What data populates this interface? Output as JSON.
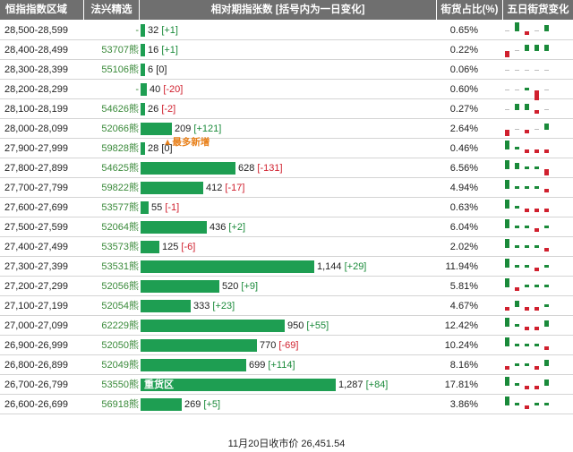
{
  "header": {
    "col_range": "恒指指数区域",
    "col_code": "法兴精选",
    "col_volume": "相对期指张数 [括号内为一日变化]",
    "col_ratio": "街货占比(%)",
    "col_trend": "五日街货变化"
  },
  "colors": {
    "bar": "#1e9e52",
    "up": "#1a8a3a",
    "down": "#d0202e",
    "header_bg": "#6f6f6f",
    "code_text": "#3a8a3a",
    "tag_text": "#e8801a"
  },
  "rows": [
    {
      "range": "28,500-28,599",
      "code": "-",
      "count": "32",
      "change": "[+1]",
      "dir": "up",
      "value": 32,
      "ratio": "0.65%",
      "trend": [
        0,
        3,
        -1,
        0,
        2
      ]
    },
    {
      "range": "28,400-28,499",
      "code": "53707熊",
      "count": "16",
      "change": "[+1]",
      "dir": "up",
      "value": 16,
      "ratio": "0.22%",
      "trend": [
        -2,
        0,
        2,
        2,
        2
      ]
    },
    {
      "range": "28,300-28,399",
      "code": "55106熊",
      "count": "6",
      "change": "[0]",
      "dir": "none",
      "value": 6,
      "ratio": "0.06%",
      "trend": [
        0,
        0,
        0,
        0,
        0
      ]
    },
    {
      "range": "28,200-28,299",
      "code": "-",
      "count": "40",
      "change": "[-20]",
      "dir": "down",
      "value": 40,
      "ratio": "0.60%",
      "trend": [
        0,
        0,
        1,
        -3,
        0
      ]
    },
    {
      "range": "28,100-28,199",
      "code": "54626熊",
      "count": "26",
      "change": "[-2]",
      "dir": "down",
      "value": 26,
      "ratio": "0.27%",
      "trend": [
        0,
        2,
        2,
        -1,
        0
      ]
    },
    {
      "range": "28,000-28,099",
      "code": "52066熊",
      "count": "209",
      "change": "[+121]",
      "dir": "up",
      "value": 209,
      "ratio": "2.64%",
      "trend": [
        -2,
        0,
        -1,
        0,
        2
      ]
    },
    {
      "range": "27,900-27,999",
      "code": "59828熊",
      "count": "28",
      "change": "[0]",
      "dir": "none",
      "value": 28,
      "ratio": "0.46%",
      "trend": [
        3,
        1,
        -1,
        -1,
        -1
      ]
    },
    {
      "range": "27,800-27,899",
      "code": "54625熊",
      "count": "628",
      "change": "[-131]",
      "dir": "down",
      "value": 628,
      "ratio": "6.56%",
      "trend": [
        3,
        2,
        1,
        1,
        -2
      ]
    },
    {
      "range": "27,700-27,799",
      "code": "59822熊",
      "count": "412",
      "change": "[-17]",
      "dir": "down",
      "value": 412,
      "ratio": "4.94%",
      "trend": [
        3,
        1,
        1,
        1,
        -1
      ]
    },
    {
      "range": "27,600-27,699",
      "code": "53577熊",
      "count": "55",
      "change": "[-1]",
      "dir": "down",
      "value": 55,
      "ratio": "0.63%",
      "trend": [
        3,
        1,
        -1,
        -1,
        -1
      ]
    },
    {
      "range": "27,500-27,599",
      "code": "52064熊",
      "count": "436",
      "change": "[+2]",
      "dir": "up",
      "value": 436,
      "ratio": "6.04%",
      "trend": [
        3,
        1,
        1,
        -1,
        1
      ]
    },
    {
      "range": "27,400-27,499",
      "code": "53573熊",
      "count": "125",
      "change": "[-6]",
      "dir": "down",
      "value": 125,
      "ratio": "2.02%",
      "trend": [
        3,
        1,
        1,
        1,
        -1
      ]
    },
    {
      "range": "27,300-27,399",
      "code": "53531熊",
      "count": "1,144",
      "change": "[+29]",
      "dir": "up",
      "value": 1144,
      "ratio": "11.94%",
      "trend": [
        3,
        1,
        1,
        -1,
        1
      ]
    },
    {
      "range": "27,200-27,299",
      "code": "52056熊",
      "count": "520",
      "change": "[+9]",
      "dir": "up",
      "value": 520,
      "ratio": "5.81%",
      "trend": [
        3,
        -1,
        1,
        1,
        1
      ]
    },
    {
      "range": "27,100-27,199",
      "code": "52054熊",
      "count": "333",
      "change": "[+23]",
      "dir": "up",
      "value": 333,
      "ratio": "4.67%",
      "trend": [
        -1,
        2,
        -1,
        -1,
        1
      ]
    },
    {
      "range": "27,000-27,099",
      "code": "62229熊",
      "count": "950",
      "change": "[+55]",
      "dir": "up",
      "value": 950,
      "ratio": "12.42%",
      "trend": [
        3,
        1,
        -1,
        -1,
        2
      ]
    },
    {
      "range": "26,900-26,999",
      "code": "52050熊",
      "count": "770",
      "change": "[-69]",
      "dir": "down",
      "value": 770,
      "ratio": "10.24%",
      "trend": [
        3,
        1,
        1,
        1,
        -1
      ]
    },
    {
      "range": "26,800-26,899",
      "code": "52049熊",
      "count": "699",
      "change": "[+114]",
      "dir": "up",
      "value": 699,
      "ratio": "8.16%",
      "trend": [
        -1,
        1,
        1,
        -1,
        2
      ]
    },
    {
      "range": "26,700-26,799",
      "code": "53550熊",
      "count": "1,287",
      "change": "[+84]",
      "dir": "up",
      "value": 1287,
      "ratio": "17.81%",
      "trend": [
        3,
        1,
        -1,
        -1,
        2
      ]
    },
    {
      "range": "26,600-26,699",
      "code": "56918熊",
      "count": "269",
      "change": "[+5]",
      "dir": "up",
      "value": 269,
      "ratio": "3.86%",
      "trend": [
        3,
        1,
        -1,
        1,
        1
      ]
    }
  ],
  "annotations": {
    "most_new": "▲最多新增",
    "heavy_zone": "重货区"
  },
  "footer": {
    "close_text": "11月20日收市价 26,451.54"
  }
}
